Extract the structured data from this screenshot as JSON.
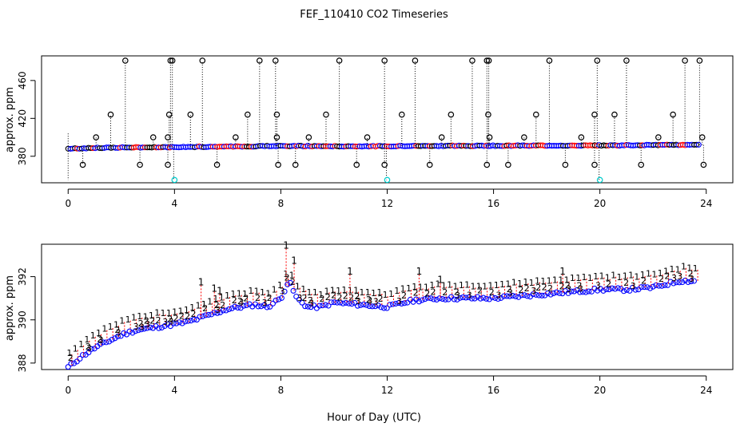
{
  "chart_data": [
    {
      "type": "scatter",
      "title": "FEF_110410  CO2 Timeseries",
      "xlabel": "",
      "ylabel": "approx. ppm",
      "xlim": [
        -1,
        25
      ],
      "ylim": [
        352,
        486
      ],
      "xticks": [
        "0",
        "4",
        "8",
        "12",
        "16",
        "20",
        "24"
      ],
      "yticks": [
        "380",
        "420",
        "460"
      ],
      "xtick_values": [
        0,
        4,
        8,
        12,
        16,
        20,
        24
      ],
      "ytick_values": [
        380,
        420,
        460
      ],
      "baseline": {
        "x": [
          0,
          1,
          2,
          3,
          4,
          5,
          6,
          7,
          8,
          9,
          10,
          11,
          12,
          13,
          14,
          15,
          16,
          17,
          18,
          19,
          20,
          21,
          22,
          23,
          23.7
        ],
        "y": [
          388,
          388.7,
          389.2,
          389.5,
          389.7,
          390.0,
          390.3,
          390.5,
          391.0,
          390.7,
          390.6,
          390.6,
          390.7,
          390.9,
          391.0,
          391.0,
          391.1,
          391.3,
          391.3,
          391.4,
          391.5,
          391.6,
          391.8,
          392.0,
          391.9
        ]
      },
      "spikes_high": [
        2.15,
        3.85,
        3.92,
        5.05,
        7.2,
        7.8,
        10.2,
        11.9,
        13.05,
        15.2,
        15.75,
        15.82,
        18.1,
        19.9,
        21.0,
        23.2,
        23.75
      ],
      "spikes_mid": [
        1.6,
        3.8,
        4.6,
        6.75,
        7.85,
        9.7,
        12.55,
        14.4,
        15.8,
        17.6,
        19.8,
        20.55,
        22.75
      ],
      "spikes_low": [
        1.05,
        3.2,
        3.75,
        6.3,
        7.85,
        9.05,
        11.25,
        14.05,
        15.85,
        17.15,
        19.3,
        22.2,
        23.85
      ],
      "dips": [
        0.55,
        2.7,
        3.75,
        5.6,
        7.9,
        8.55,
        10.85,
        11.9,
        13.6,
        15.75,
        16.55,
        18.7,
        19.8,
        21.55,
        23.9
      ],
      "cyan_points": {
        "x": [
          4.0,
          12.0,
          20.0
        ],
        "y": [
          355,
          355,
          355
        ]
      }
    },
    {
      "type": "scatter",
      "title": "",
      "xlabel": "Hour of Day (UTC)",
      "ylabel": "approx. ppm",
      "xlim": [
        -1,
        25
      ],
      "ylim": [
        387.7,
        393.5
      ],
      "xticks": [
        "0",
        "4",
        "8",
        "12",
        "16",
        "20",
        "24"
      ],
      "yticks": [
        "388",
        "390",
        "392"
      ],
      "xtick_values": [
        0,
        4,
        8,
        12,
        16,
        20,
        24
      ],
      "ytick_values": [
        388,
        390,
        392
      ],
      "series": [
        {
          "name": "1",
          "color": "#ff0000",
          "offset": 0.45
        },
        {
          "name": "2",
          "color": "#00cc00",
          "offset": 0.15
        },
        {
          "name": "3",
          "color": "#0000cc",
          "offset": 0.0
        }
      ],
      "baseline": {
        "x": [
          0,
          0.5,
          1,
          1.5,
          2,
          2.5,
          3,
          3.5,
          4,
          4.5,
          5,
          5.5,
          6,
          6.5,
          7,
          7.5,
          8,
          8.3,
          8.6,
          9,
          9.5,
          10,
          11,
          12,
          13,
          14,
          15,
          16,
          17,
          18,
          19,
          20,
          21,
          22,
          23,
          23.6
        ],
        "y": [
          387.8,
          388.3,
          388.7,
          389.0,
          389.3,
          389.5,
          389.6,
          389.7,
          389.8,
          389.9,
          390.1,
          390.3,
          390.5,
          390.6,
          390.7,
          390.6,
          391.0,
          391.8,
          391.0,
          390.6,
          390.6,
          390.8,
          390.7,
          390.6,
          390.9,
          391.0,
          391.0,
          391.0,
          391.1,
          391.2,
          391.3,
          391.4,
          391.4,
          391.5,
          391.8,
          391.8
        ]
      },
      "spikes": {
        "x": [
          8.2,
          8.5,
          5.0,
          5.5,
          10.6,
          13.2,
          18.6,
          14.0,
          5.7
        ],
        "y": [
          393.3,
          392.6,
          391.6,
          391.3,
          392.1,
          392.1,
          392.1,
          391.7,
          391.2
        ]
      }
    }
  ],
  "colors": {
    "ring": "#000000",
    "inner_blue": "#0000ff",
    "red": "#ff0000",
    "green": "#00cc00",
    "blue": "#0000cc",
    "cyan": "#00cccc"
  }
}
